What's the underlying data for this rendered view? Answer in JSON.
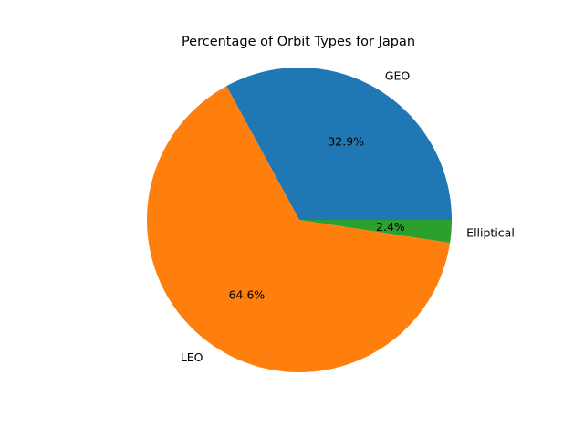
{
  "chart_data": {
    "type": "pie",
    "title": "Percentage of Orbit Types for Japan",
    "slices": [
      {
        "label": "GEO",
        "value": 32.9,
        "pct_label": "32.9%",
        "color": "#1f77b4"
      },
      {
        "label": "LEO",
        "value": 64.6,
        "pct_label": "64.6%",
        "color": "#ff7f0e"
      },
      {
        "label": "Elliptical",
        "value": 2.4,
        "pct_label": "2.4%",
        "color": "#2ca02c"
      }
    ],
    "start_angle_deg": 0,
    "direction": "counterclockwise",
    "legend": "none"
  }
}
